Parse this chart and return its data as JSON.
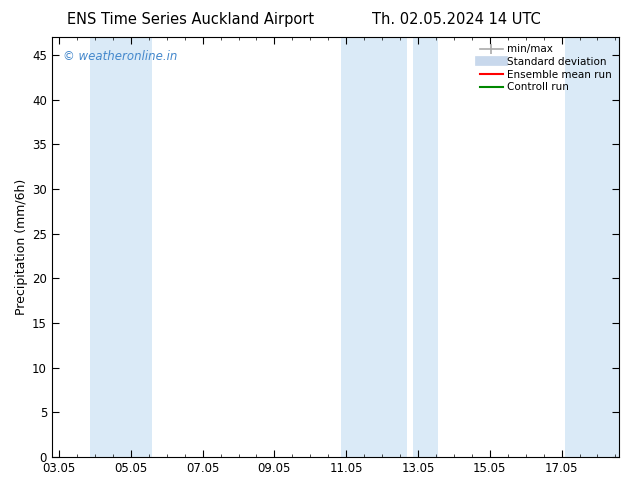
{
  "title_left": "ENS Time Series Auckland Airport",
  "title_right": "Th. 02.05.2024 14 UTC",
  "ylabel": "Precipitation (mm/6h)",
  "ylim": [
    0,
    47
  ],
  "yticks": [
    0,
    5,
    10,
    15,
    20,
    25,
    30,
    35,
    40,
    45
  ],
  "xtick_labels": [
    "03.05",
    "05.05",
    "07.05",
    "09.05",
    "11.05",
    "13.05",
    "15.05",
    "17.05"
  ],
  "xtick_positions": [
    0,
    2,
    4,
    6,
    8,
    10,
    12,
    14
  ],
  "xlim": [
    -0.2,
    15.6
  ],
  "shaded_regions": [
    [
      0.85,
      2.6
    ],
    [
      7.85,
      9.7
    ],
    [
      9.85,
      10.55
    ],
    [
      14.1,
      15.6
    ]
  ],
  "shade_color": "#daeaf7",
  "watermark_text": "© weatheronline.in",
  "watermark_color": "#4488cc",
  "legend_minmax_color": "#aaaaaa",
  "legend_std_color": "#c8d8ec",
  "legend_ensemble_color": "#ff0000",
  "legend_control_color": "#008800",
  "background_color": "#ffffff",
  "tick_label_fontsize": 8.5,
  "axis_label_fontsize": 9,
  "title_fontsize": 10.5
}
